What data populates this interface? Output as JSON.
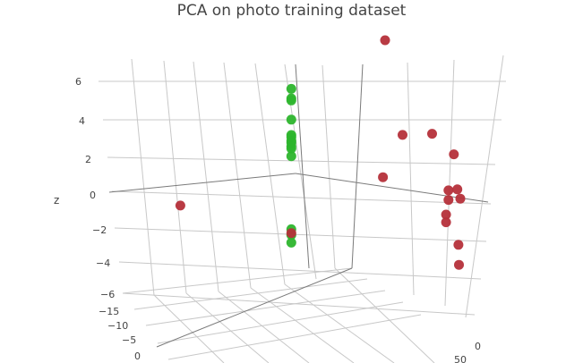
{
  "chart_data": {
    "type": "scatter3d",
    "title": "PCA on photo training dataset",
    "axes": {
      "z": {
        "label": "z",
        "ticks": [
          "6",
          "4",
          "2",
          "0",
          "−2",
          "−4",
          "−6"
        ]
      },
      "y": {
        "ticks": [
          "−15",
          "−10",
          "−5",
          "0"
        ]
      },
      "x": {
        "ticks": [
          "0",
          "50"
        ]
      }
    },
    "grid": true,
    "colors": {
      "green": "#2db52d",
      "red": "#b5303a"
    },
    "series": [
      {
        "color_key": "green",
        "points": [
          {
            "x": -3,
            "y": -3,
            "z": 5.3
          },
          {
            "x": -3,
            "y": -3,
            "z": 4.8
          },
          {
            "x": -3,
            "y": -3,
            "z": 4.7
          },
          {
            "x": -3,
            "y": -3,
            "z": 3.7
          },
          {
            "x": -3,
            "y": -3,
            "z": 2.9
          },
          {
            "x": -3,
            "y": -3,
            "z": 2.8
          },
          {
            "x": -3,
            "y": -3,
            "z": 2.6
          },
          {
            "x": -3,
            "y": -3,
            "z": 2.5
          },
          {
            "x": -3,
            "y": -3,
            "z": 2.3
          },
          {
            "x": -3,
            "y": -3,
            "z": 2.2
          },
          {
            "x": -3,
            "y": -3,
            "z": 1.8
          },
          {
            "x": -3,
            "y": -3,
            "z": -2.0
          },
          {
            "x": -3,
            "y": -3,
            "z": -2.3
          },
          {
            "x": -3,
            "y": -3,
            "z": -2.7
          }
        ]
      },
      {
        "color_key": "red",
        "points": [
          {
            "x": -3,
            "y": -3,
            "z": -2.2
          },
          {
            "x": -42,
            "y": 5,
            "z": 0.2
          },
          {
            "x": 30,
            "y": -10,
            "z": 7.0
          },
          {
            "x": 35,
            "y": -5,
            "z": 2.2
          },
          {
            "x": 45,
            "y": -5,
            "z": 2.1
          },
          {
            "x": 52,
            "y": -3,
            "z": 1.0
          },
          {
            "x": 28,
            "y": -3,
            "z": 0.2
          },
          {
            "x": 50,
            "y": -2,
            "z": -0.8
          },
          {
            "x": 53,
            "y": -2,
            "z": -0.8
          },
          {
            "x": 50,
            "y": -2,
            "z": -1.3
          },
          {
            "x": 54,
            "y": -2,
            "z": -1.3
          },
          {
            "x": 49,
            "y": -1,
            "z": -2.0
          },
          {
            "x": 49,
            "y": -1,
            "z": -2.4
          },
          {
            "x": 53,
            "y": 0,
            "z": -3.6
          },
          {
            "x": 53,
            "y": 1,
            "z": -4.6
          }
        ]
      }
    ]
  }
}
